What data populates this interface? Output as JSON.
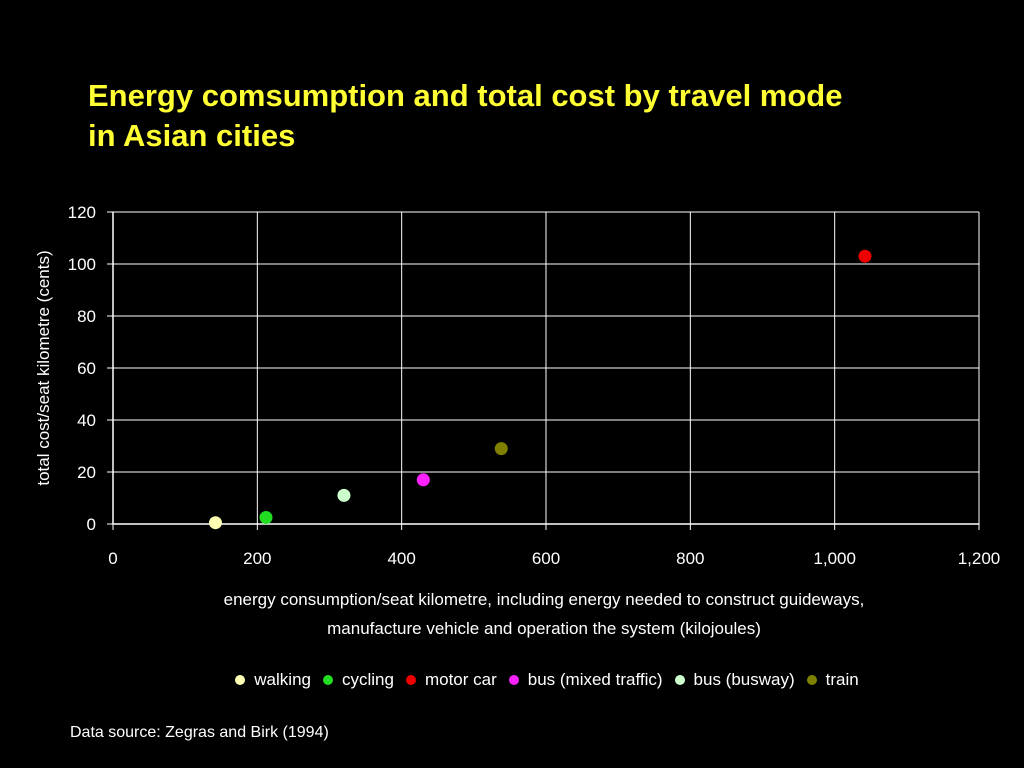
{
  "slide": {
    "title_line1": "Energy comsumption and total cost by travel mode",
    "title_line2": "in Asian cities",
    "source": "Data source: Zegras and Birk (1994)"
  },
  "chart_data": {
    "type": "scatter",
    "title": "",
    "xlabel_line1": "energy consumption/seat kilometre, including energy needed to construct guideways,",
    "xlabel_line2": "manufacture vehicle and operation the system (kilojoules)",
    "ylabel": "total cost/seat kilometre (cents)",
    "xlim": [
      0,
      1200
    ],
    "ylim": [
      0,
      120
    ],
    "xticks": [
      0,
      200,
      400,
      600,
      800,
      1000,
      1200
    ],
    "xtick_labels": [
      "0",
      "200",
      "400",
      "600",
      "800",
      "1,000",
      "1,200"
    ],
    "yticks": [
      0,
      20,
      40,
      60,
      80,
      100,
      120
    ],
    "ytick_labels": [
      "0",
      "20",
      "40",
      "60",
      "80",
      "100",
      "120"
    ],
    "grid": true,
    "legend_position": "bottom",
    "series": [
      {
        "name": "walking",
        "color": "#ffffb3",
        "x": 142,
        "y": 0.5
      },
      {
        "name": "cycling",
        "color": "#22dd22",
        "x": 212,
        "y": 2.5
      },
      {
        "name": "motor car",
        "color": "#ee0000",
        "x": 1042,
        "y": 103
      },
      {
        "name": "bus (mixed traffic)",
        "color": "#ff22ff",
        "x": 430,
        "y": 17
      },
      {
        "name": "bus (busway)",
        "color": "#ccffcc",
        "x": 320,
        "y": 11
      },
      {
        "name": "train",
        "color": "#808000",
        "x": 538,
        "y": 29
      }
    ]
  }
}
